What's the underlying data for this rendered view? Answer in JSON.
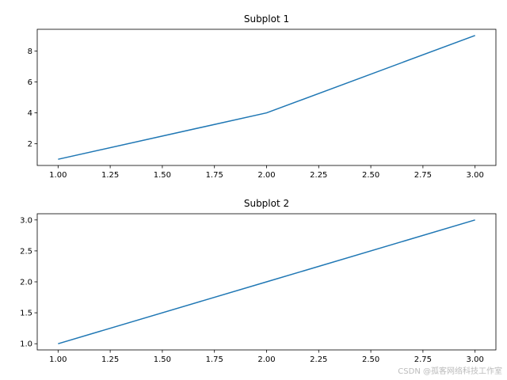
{
  "chart_data": [
    {
      "type": "line",
      "title": "Subplot 1",
      "x": [
        1,
        2,
        3
      ],
      "series": [
        {
          "color": "#1f77b4",
          "values": [
            1,
            4,
            9
          ]
        }
      ],
      "xlim": [
        0.9,
        3.1
      ],
      "xticks": [
        {
          "value": 1,
          "label": "1.00"
        },
        {
          "value": 1.25,
          "label": "1.25"
        },
        {
          "value": 1.5,
          "label": "1.50"
        },
        {
          "value": 1.75,
          "label": "1.75"
        },
        {
          "value": 2,
          "label": "2.00"
        },
        {
          "value": 2.25,
          "label": "2.25"
        },
        {
          "value": 2.5,
          "label": "2.50"
        },
        {
          "value": 2.75,
          "label": "2.75"
        },
        {
          "value": 3,
          "label": "3.00"
        }
      ],
      "ylim": [
        0.6,
        9.4
      ],
      "yticks": [
        2,
        4,
        6,
        8
      ]
    },
    {
      "type": "line",
      "title": "Subplot 2",
      "x": [
        1,
        2,
        3
      ],
      "series": [
        {
          "color": "#1f77b4",
          "values": [
            1,
            2,
            3
          ]
        }
      ],
      "xlim": [
        0.9,
        3.1
      ],
      "xticks": [
        {
          "value": 1,
          "label": "1.00"
        },
        {
          "value": 1.25,
          "label": "1.25"
        },
        {
          "value": 1.5,
          "label": "1.50"
        },
        {
          "value": 1.75,
          "label": "1.75"
        },
        {
          "value": 2,
          "label": "2.00"
        },
        {
          "value": 2.25,
          "label": "2.25"
        },
        {
          "value": 2.5,
          "label": "2.50"
        },
        {
          "value": 2.75,
          "label": "2.75"
        },
        {
          "value": 3,
          "label": "3.00"
        }
      ],
      "ylim": [
        0.9,
        3.1
      ],
      "yticks": [
        {
          "value": 1,
          "label": "1.0"
        },
        {
          "value": 1.5,
          "label": "1.5"
        },
        {
          "value": 2,
          "label": "2.0"
        },
        {
          "value": 2.5,
          "label": "2.5"
        },
        {
          "value": 3,
          "label": "3.0"
        }
      ]
    }
  ],
  "watermark": "CSDN @孤客网络科技工作室"
}
